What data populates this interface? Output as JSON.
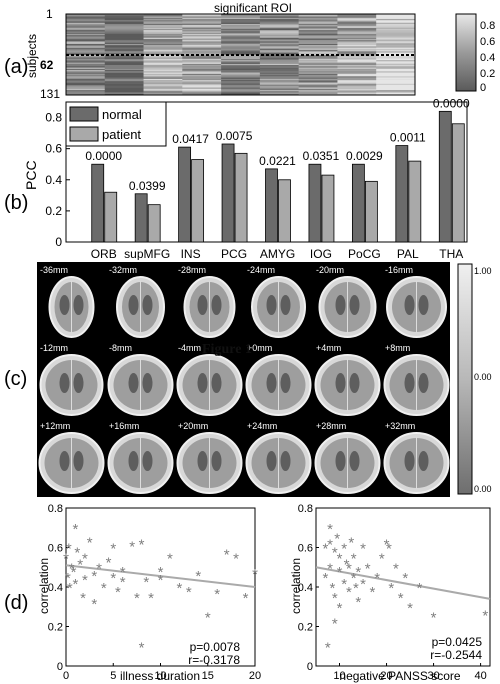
{
  "panel_labels": {
    "a": "(a)",
    "b": "(b)",
    "c": "(c)",
    "d": "(d)"
  },
  "heatmap": {
    "title": "significant ROI",
    "ylabel": "subjects",
    "yticks": [
      "1",
      "62",
      "131"
    ],
    "colorbar_ticks": [
      "0.8",
      "0.6",
      "0.4",
      "0.2",
      "0"
    ],
    "n_columns": 9,
    "n_subjects": 131,
    "divider_subject": 62
  },
  "mri": {
    "slices": [
      "-36mm",
      "-32mm",
      "-28mm",
      "-24mm",
      "-20mm",
      "-16mm",
      "-12mm",
      "-8mm",
      "-4mm",
      "+0mm",
      "+4mm",
      "+8mm",
      "+12mm",
      "+16mm",
      "+20mm",
      "+24mm",
      "+28mm",
      "+32mm"
    ],
    "colorbar_ticks": [
      "1.00",
      "0.00",
      "0.00"
    ],
    "overlay_text": "Figure 1"
  },
  "chart_data": [
    {
      "type": "bar",
      "ylabel": "PCC",
      "xlabel": "",
      "title": "",
      "categories": [
        "ORB",
        "supMFG",
        "INS",
        "PCG",
        "AMYG",
        "IOG",
        "PoCG",
        "PAL",
        "THA"
      ],
      "series": [
        {
          "name": "normal",
          "values": [
            0.5,
            0.31,
            0.61,
            0.63,
            0.47,
            0.5,
            0.5,
            0.62,
            0.84
          ],
          "color": "#6b6b6b"
        },
        {
          "name": "patient",
          "values": [
            0.32,
            0.24,
            0.53,
            0.57,
            0.4,
            0.43,
            0.39,
            0.52,
            0.76
          ],
          "color": "#a9a9a9"
        }
      ],
      "annotations": [
        "0.0000",
        "0.0399",
        "0.0417",
        "0.0075",
        "0.0221",
        "0.0351",
        "0.0029",
        "0.0011",
        "0.0000"
      ],
      "ylim": [
        0,
        0.9
      ],
      "yticks": [
        "0",
        "0.2",
        "0.4",
        "0.6",
        "0.8"
      ],
      "legend_position": "top-left"
    },
    {
      "type": "scatter",
      "xlabel": "illness duration",
      "ylabel": "correlation",
      "xlim": [
        0,
        20
      ],
      "ylim": [
        0,
        0.8
      ],
      "xticks": [
        "0",
        "5",
        "10",
        "15",
        "20"
      ],
      "yticks": [
        "0",
        "0.2",
        "0.4",
        "0.6",
        "0.8"
      ],
      "x": [
        0,
        0.2,
        0.3,
        0.4,
        0.6,
        0.8,
        1,
        1,
        1.2,
        1.5,
        1.8,
        2,
        2,
        2.5,
        3,
        3,
        3.5,
        4,
        4.5,
        5,
        5,
        5.5,
        6,
        6,
        7,
        7.5,
        8,
        8,
        8.5,
        9,
        10,
        10,
        11,
        12,
        13,
        14,
        15,
        16,
        17,
        18,
        19,
        20
      ],
      "y": [
        0.55,
        0.45,
        0.6,
        0.4,
        0.5,
        0.48,
        0.7,
        0.42,
        0.58,
        0.52,
        0.35,
        0.44,
        0.55,
        0.63,
        0.46,
        0.32,
        0.5,
        0.4,
        0.53,
        0.45,
        0.6,
        0.38,
        0.48,
        0.43,
        0.61,
        0.35,
        0.1,
        0.62,
        0.43,
        0.35,
        0.48,
        0.44,
        0.55,
        0.4,
        0.38,
        0.46,
        0.25,
        0.37,
        0.57,
        0.55,
        0.35,
        0.47
      ],
      "trend": [
        [
          0,
          0.51
        ],
        [
          20,
          0.4
        ]
      ],
      "stats": [
        "p=0.0078",
        "r=-0.3178"
      ]
    },
    {
      "type": "scatter",
      "xlabel": "negative PANSS score",
      "ylabel": "correlation",
      "xlim": [
        5,
        42
      ],
      "ylim": [
        0,
        0.8
      ],
      "xticks": [
        "10",
        "20",
        "30",
        "40"
      ],
      "yticks": [
        "0",
        "0.2",
        "0.4",
        "0.6",
        "0.8"
      ],
      "x": [
        7,
        7,
        7.5,
        8,
        8,
        8.5,
        9,
        9,
        9.5,
        10,
        10,
        10,
        11,
        11,
        11.5,
        12,
        12,
        12.5,
        13,
        13,
        13.5,
        14,
        14,
        15,
        15,
        16,
        17,
        18,
        19,
        20,
        20.5,
        21,
        22,
        23,
        24,
        25,
        27,
        30,
        8,
        9,
        41
      ],
      "y": [
        0.6,
        0.45,
        0.1,
        0.62,
        0.5,
        0.4,
        0.58,
        0.35,
        0.65,
        0.55,
        0.48,
        0.3,
        0.6,
        0.42,
        0.52,
        0.5,
        0.38,
        0.63,
        0.45,
        0.55,
        0.4,
        0.48,
        0.33,
        0.6,
        0.42,
        0.5,
        0.38,
        0.45,
        0.55,
        0.62,
        0.6,
        0.4,
        0.5,
        0.35,
        0.45,
        0.3,
        0.4,
        0.25,
        0.7,
        0.22,
        0.26
      ],
      "trend": [
        [
          5,
          0.5
        ],
        [
          42,
          0.34
        ]
      ],
      "stats": [
        "p=0.0425",
        "r=-0.2544"
      ]
    }
  ]
}
